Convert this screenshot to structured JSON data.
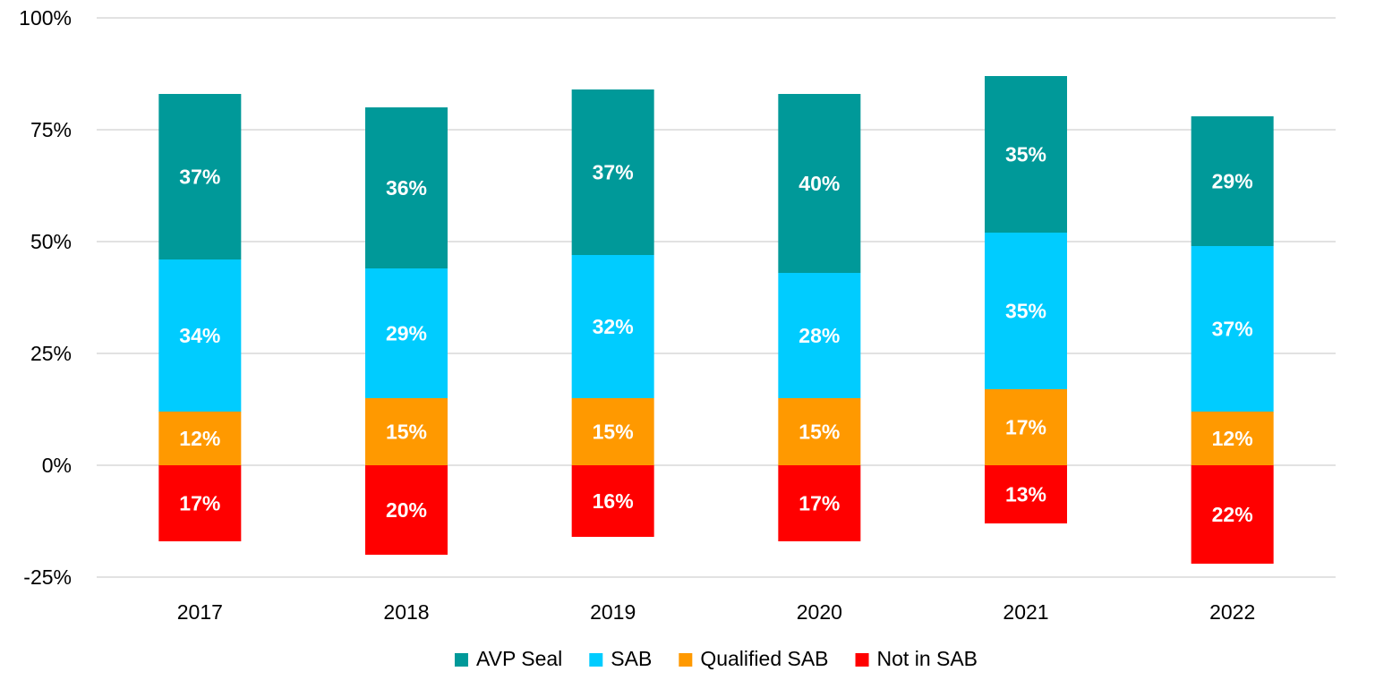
{
  "chart_data": {
    "type": "bar",
    "stacked": true,
    "categories": [
      "2017",
      "2018",
      "2019",
      "2020",
      "2021",
      "2022"
    ],
    "series": [
      {
        "name": "Not in SAB",
        "color": "#ff0000",
        "values": [
          -17,
          -20,
          -16,
          -17,
          -13,
          -22
        ],
        "labels": [
          "17%",
          "20%",
          "16%",
          "17%",
          "13%",
          "22%"
        ]
      },
      {
        "name": "Qualified SAB",
        "color": "#ff9900",
        "values": [
          12,
          15,
          15,
          15,
          17,
          12
        ],
        "labels": [
          "12%",
          "15%",
          "15%",
          "15%",
          "17%",
          "12%"
        ]
      },
      {
        "name": "SAB",
        "color": "#00ccff",
        "values": [
          34,
          29,
          32,
          28,
          35,
          37
        ],
        "labels": [
          "34%",
          "29%",
          "32%",
          "28%",
          "35%",
          "37%"
        ]
      },
      {
        "name": "AVP Seal",
        "color": "#009999",
        "values": [
          37,
          36,
          37,
          40,
          35,
          29
        ],
        "labels": [
          "37%",
          "36%",
          "37%",
          "40%",
          "35%",
          "29%"
        ]
      }
    ],
    "legend_order": [
      "AVP Seal",
      "SAB",
      "Qualified SAB",
      "Not in SAB"
    ],
    "y_ticks": [
      -25,
      0,
      25,
      50,
      75,
      100
    ],
    "y_tick_labels": [
      "-25%",
      "0%",
      "25%",
      "50%",
      "75%",
      "100%"
    ],
    "ylim": [
      -25,
      100
    ],
    "grid": true,
    "legend_position": "bottom",
    "title": "",
    "xlabel": "",
    "ylabel": ""
  }
}
